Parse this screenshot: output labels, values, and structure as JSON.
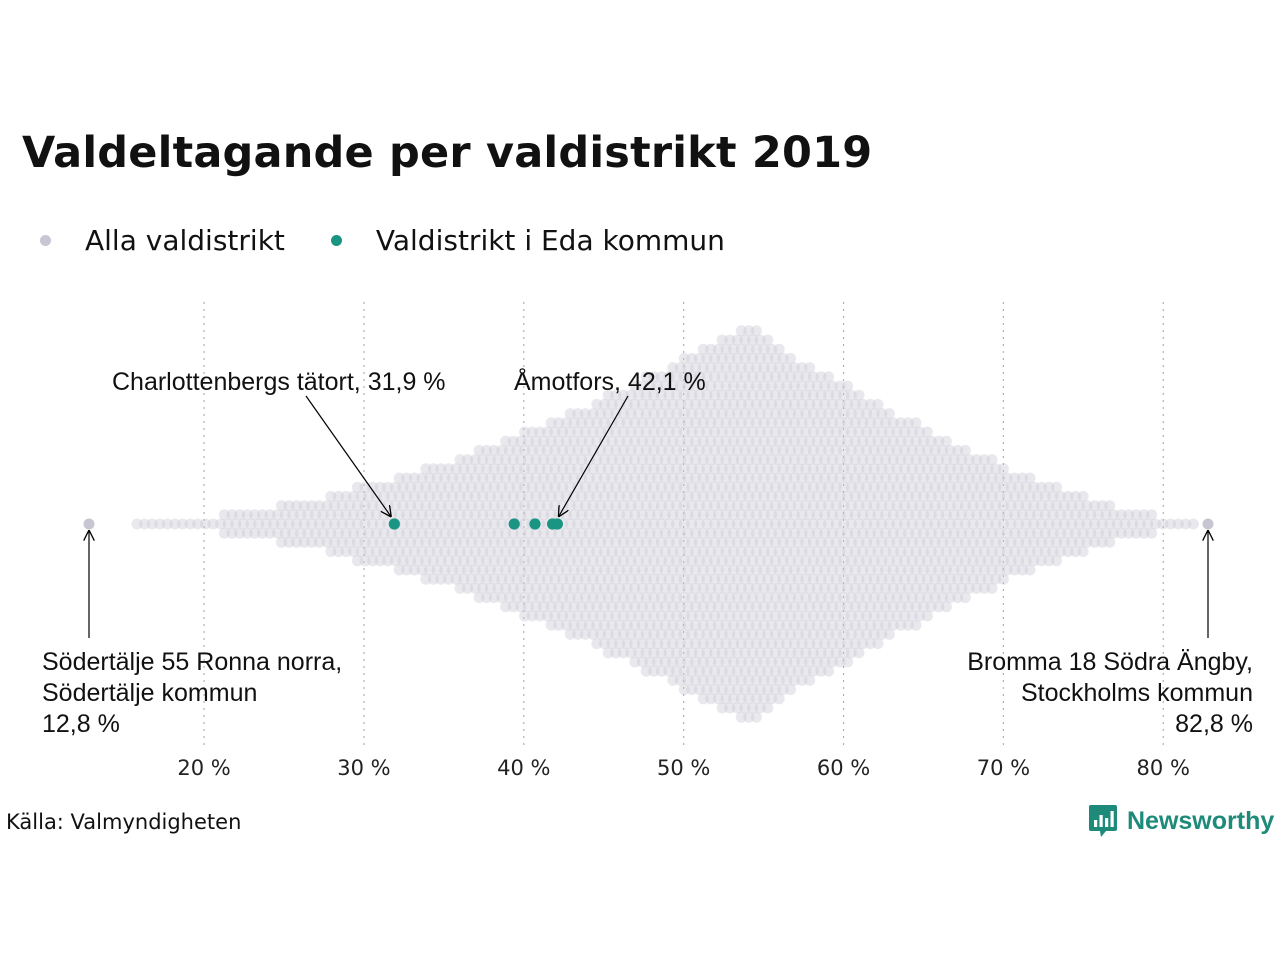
{
  "chart_data": {
    "type": "scatter",
    "subtype": "beeswarm",
    "title": "Valdeltagande per valdistrikt 2019",
    "legend": [
      {
        "name": "Alla valdistrikt",
        "color": "#c7c6d2"
      },
      {
        "name": "Valdistrikt i Eda kommun",
        "color": "#1a9483"
      }
    ],
    "legend_placement": "top-left",
    "x_ticks": [
      20,
      30,
      40,
      50,
      60,
      70,
      80
    ],
    "x_tick_labels": [
      "20 %",
      "30 %",
      "40 %",
      "50 %",
      "60 %",
      "70 %",
      "80 %"
    ],
    "xlim": [
      12.8,
      82.8
    ],
    "grid": "vertical dotted",
    "all_districts": {
      "name": "Alla valdistrikt",
      "min": 12.8,
      "max": 82.8,
      "mode": 53.7,
      "color": "#c7c6d2"
    },
    "highlighted": {
      "name": "Valdistrikt i Eda kommun",
      "color": "#1a9483",
      "values": [
        31.9,
        39.4,
        40.7,
        41.8,
        42.1
      ]
    },
    "annotations": [
      {
        "lines": [
          "Charlottenbergs tätort, 31,9 %"
        ],
        "value": 31.9,
        "placement": "above"
      },
      {
        "lines": [
          "Åmotfors, 42,1 %"
        ],
        "value": 42.1,
        "placement": "above"
      },
      {
        "lines": [
          "Södertälje 55 Ronna norra,",
          "Södertälje kommun",
          "12,8 %"
        ],
        "value": 12.8,
        "placement": "below-left"
      },
      {
        "lines": [
          "Bromma 18 Södra Ängby,",
          "Stockholms kommun",
          "82,8 %"
        ],
        "value": 82.8,
        "placement": "below-right"
      }
    ]
  },
  "footer": {
    "source": "Källa: Valmyndigheten",
    "brand": "Newsworthy",
    "brand_color": "#1d8a7a",
    "brand_icon": "newsworthy-logo-icon"
  }
}
